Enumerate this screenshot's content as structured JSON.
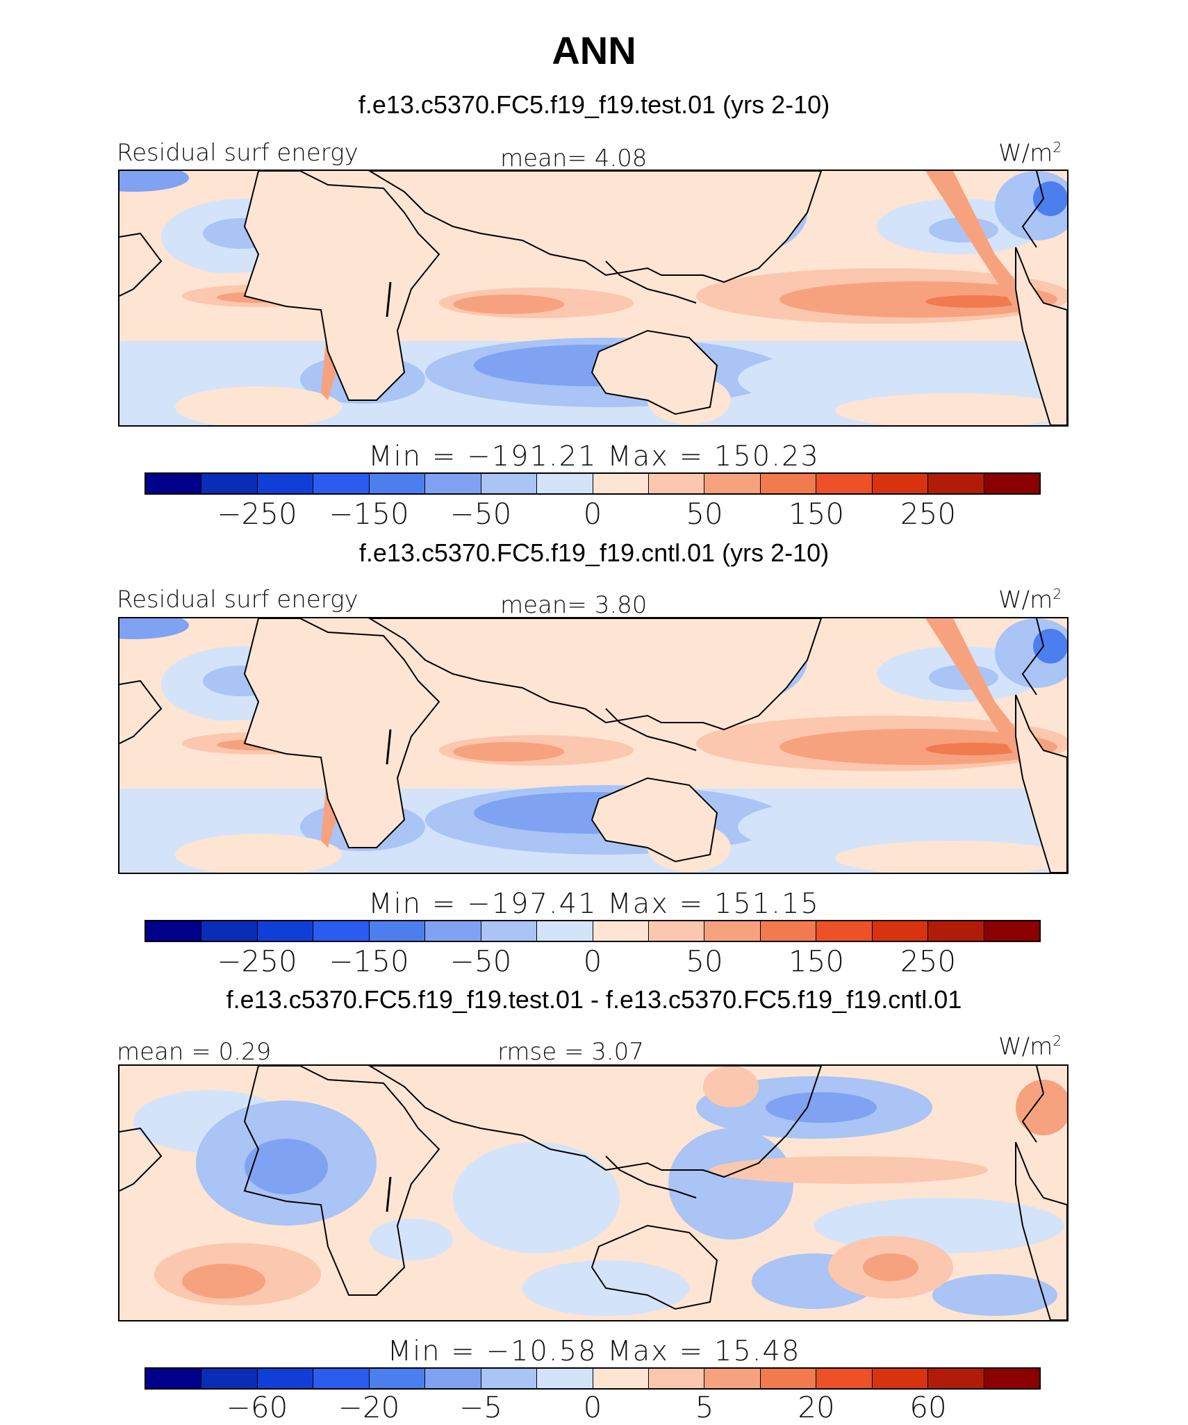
{
  "title": "ANN",
  "colors": [
    "#00008b",
    "#0a2db8",
    "#0f3fd6",
    "#2a5cf0",
    "#4c7fed",
    "#7fa3f2",
    "#a9c4f5",
    "#d3e3fa",
    "#fde4d3",
    "#fbc7ae",
    "#f7a27f",
    "#f27a4f",
    "#ec5127",
    "#d8330f",
    "#b01c08",
    "#8b0000"
  ],
  "land_color": "#fde4d3",
  "panels": [
    {
      "title": "f.e13.c5370.FC5.f19_f19.test.01 (yrs 2-10)",
      "left_label": "Residual surf energy",
      "center_label": "mean=   4.08",
      "units": "W/m",
      "units_sup": "2",
      "min_max": "Min = −191.21  Max = 150.23",
      "ticks": [
        "−250",
        "−150",
        "−50",
        "0",
        "50",
        "150",
        "250"
      ]
    },
    {
      "title": "f.e13.c5370.FC5.f19_f19.cntl.01 (yrs 2-10)",
      "left_label": "Residual surf energy",
      "center_label": "mean=   3.80",
      "units": "W/m",
      "units_sup": "2",
      "min_max": "Min = −197.41  Max = 151.15",
      "ticks": [
        "−250",
        "−150",
        "−50",
        "0",
        "50",
        "150",
        "250"
      ]
    },
    {
      "title": "f.e13.c5370.FC5.f19_f19.test.01 - f.e13.c5370.FC5.f19_f19.cntl.01",
      "left_label": "mean =   0.29",
      "center_label": "rmse =   3.07",
      "units": "W/m",
      "units_sup": "2",
      "min_max": "Min = −10.58  Max =  15.48",
      "ticks": [
        "−60",
        "−20",
        "−5",
        "0",
        "5",
        "20",
        "60"
      ]
    }
  ]
}
